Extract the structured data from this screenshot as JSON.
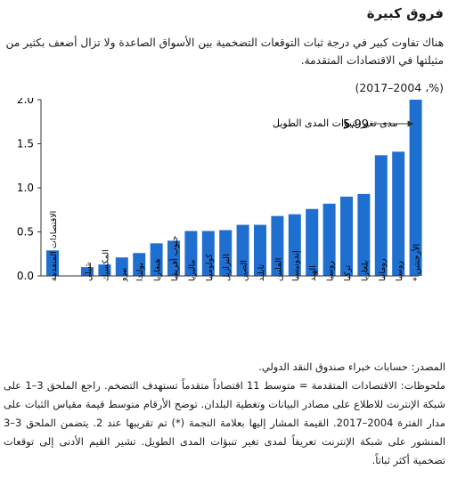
{
  "title": "فروق كبيرة",
  "subtitle": "هناك تفاوت كبير في درجة ثبات التوقعات التضخمية بين الأسواق الصاعدة ولا تزال أضعف بكثير من مثيلتها في الاقتصادات المتقدمة.",
  "units": "(%، 2004–2017)",
  "chart_data": {
    "type": "bar",
    "ylabel": "مدى تغير تنبؤات المدى الطويل",
    "ylim": [
      0,
      2.0
    ],
    "yticks": [
      "0.0",
      "0.5",
      "1.0",
      "1.5",
      "2.0"
    ],
    "bar_color": "#1f6fd1",
    "categories": [
      "الاقتصادات المتقدمة",
      "شيلي",
      "المكسيك",
      "بيرو",
      "بولندا",
      "هنغاريا",
      "جنوب أفريقيا",
      "ماليزيا",
      "كولومبيا",
      "البرازيل",
      "الصين",
      "تايلند",
      "الفلبين",
      "إندونيسيا",
      "الهند",
      "روسيا",
      "تركيا",
      "بلغاريا",
      "رومانيا",
      "روسيا",
      "الأرجنتين *"
    ],
    "values": [
      0.29,
      0.1,
      0.13,
      0.21,
      0.26,
      0.37,
      0.4,
      0.51,
      0.51,
      0.52,
      0.58,
      0.58,
      0.68,
      0.7,
      0.76,
      0.82,
      0.9,
      0.93,
      1.37,
      1.41,
      2.0
    ],
    "annotation": "5.99"
  },
  "source": "المصدر: حسابات خبراء صندوق النقد الدولي.",
  "notes": "ملحوظات: الاقتصادات المتقدمة = متوسط 11 اقتصاداً متقدماً تستهدف التضخم. راجع الملحق 3–1 على شبكة الإنترنت للاطلاع على مصادر البيانات وتغطية البلدان. توضح الأرقام متوسط قيمة مقياس الثبات على مدار الفترة 2004–2017. القيمة المشار إليها بعلامة النجمة (*) تم تقريبها عند 2. يتضمن الملحق 3–3 المنشور على شبكة الإنترنت تعريفاً لمدى تغير تنبؤات المدى الطويل. تشير القيم الأدنى إلى توقعات تضخمية أكثر ثباتاً."
}
